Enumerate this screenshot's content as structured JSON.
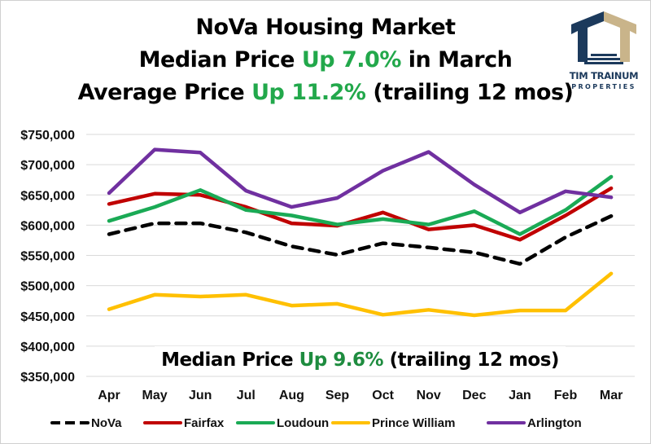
{
  "header": {
    "line1": "NoVa Housing Market",
    "line2_pre": "Median Price ",
    "line2_green": "Up 7.0%",
    "line2_post": " in March",
    "line3_pre": "Average Price ",
    "line3_green": "Up 11.2%",
    "line3_post": " (trailing 12 mos)"
  },
  "logo": {
    "name": "TIM TRAINUM",
    "sub": "PROPERTIES",
    "colors": {
      "navy": "#1c3a5c",
      "tan": "#c9b48a"
    }
  },
  "annotation": {
    "pre": "Median Price ",
    "green": "Up 9.6%",
    "post": " (trailing 12 mos)"
  },
  "chart_data": {
    "type": "line",
    "title": "NoVa Housing Market",
    "xlabel": "",
    "ylabel": "",
    "categories": [
      "Apr",
      "May",
      "Jun",
      "Jul",
      "Aug",
      "Sep",
      "Oct",
      "Nov",
      "Dec",
      "Jan",
      "Feb",
      "Mar"
    ],
    "ylim": [
      350000,
      750000
    ],
    "yticks": [
      750000,
      700000,
      650000,
      600000,
      550000,
      500000,
      450000,
      400000,
      350000
    ],
    "ytick_labels": [
      "$750,000",
      "$700,000",
      "$650,000",
      "$600,000",
      "$550,000",
      "$500,000",
      "$450,000",
      "$400,000",
      "$350,000"
    ],
    "grid": true,
    "legend_position": "bottom",
    "series": [
      {
        "name": "NoVa",
        "color": "#000000",
        "dashed": true,
        "values": [
          585000,
          603000,
          603000,
          588000,
          565000,
          551000,
          570000,
          563000,
          555000,
          536000,
          580000,
          615000
        ]
      },
      {
        "name": "Fairfax",
        "color": "#c00000",
        "dashed": false,
        "values": [
          635000,
          652000,
          650000,
          630000,
          603000,
          599000,
          621000,
          593000,
          600000,
          576000,
          616000,
          661000
        ]
      },
      {
        "name": "Loudoun",
        "color": "#1aaa55",
        "dashed": false,
        "values": [
          607000,
          630000,
          658000,
          625000,
          616000,
          601000,
          610000,
          601000,
          623000,
          585000,
          625000,
          680000
        ]
      },
      {
        "name": "Prince William",
        "color": "#ffc000",
        "dashed": false,
        "values": [
          461000,
          485000,
          482000,
          485000,
          467000,
          470000,
          452000,
          460000,
          451000,
          459000,
          459000,
          520000
        ]
      },
      {
        "name": "Arlington",
        "color": "#7030a0",
        "dashed": false,
        "values": [
          653000,
          725000,
          720000,
          657000,
          630000,
          645000,
          690000,
          721000,
          667000,
          621000,
          656000,
          646000
        ]
      }
    ]
  }
}
